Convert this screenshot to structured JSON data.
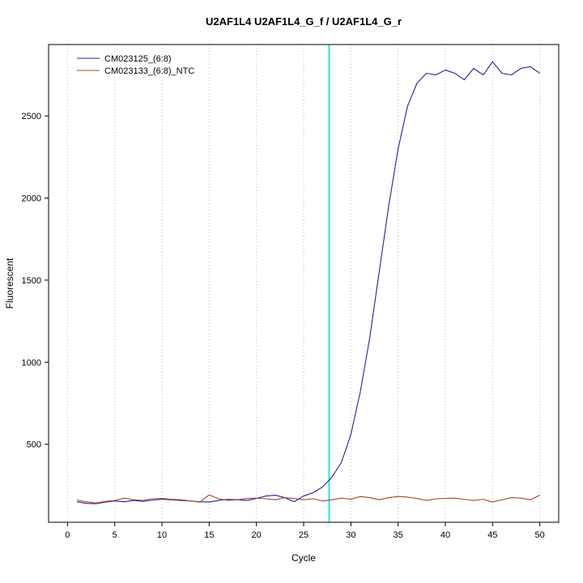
{
  "chart_data": {
    "type": "line",
    "title": "U2AF1L4  U2AF1L4_G_f / U2AF1L4_G_r",
    "xlabel": "Cycle",
    "ylabel": "Fluorescent",
    "xlim": [
      -2,
      52
    ],
    "ylim": [
      25,
      2935
    ],
    "xticks": [
      0,
      5,
      10,
      15,
      20,
      25,
      30,
      35,
      40,
      45,
      50
    ],
    "yticks": [
      500,
      1000,
      1500,
      2000,
      2500
    ],
    "grid": "vertical-dotted",
    "grid_color": "#bfbfbf",
    "threshold_line": {
      "x": 27.7,
      "color": "#00e0e0"
    },
    "legend_position": "top-left",
    "x": [
      1,
      2,
      3,
      4,
      5,
      6,
      7,
      8,
      9,
      10,
      11,
      12,
      13,
      14,
      15,
      16,
      17,
      18,
      19,
      20,
      21,
      22,
      23,
      24,
      25,
      26,
      27,
      28,
      29,
      30,
      31,
      32,
      33,
      34,
      35,
      36,
      37,
      38,
      39,
      40,
      41,
      42,
      43,
      44,
      45,
      46,
      47,
      48,
      49,
      50
    ],
    "series": [
      {
        "name": "CM023125_(6:8)",
        "color": "#22229a",
        "values": [
          150,
          140,
          138,
          148,
          155,
          150,
          158,
          152,
          160,
          165,
          162,
          158,
          155,
          150,
          148,
          158,
          165,
          162,
          158,
          170,
          185,
          190,
          175,
          150,
          185,
          205,
          240,
          300,
          390,
          560,
          820,
          1150,
          1550,
          1950,
          2300,
          2560,
          2700,
          2760,
          2750,
          2780,
          2760,
          2720,
          2790,
          2750,
          2830,
          2760,
          2750,
          2790,
          2800,
          2760
        ]
      },
      {
        "name": "CM023133_(6:8)_NTC",
        "color": "#a8442f",
        "values": [
          160,
          150,
          142,
          152,
          158,
          172,
          162,
          158,
          168,
          170,
          165,
          162,
          155,
          148,
          192,
          168,
          158,
          162,
          170,
          172,
          168,
          162,
          175,
          170,
          162,
          168,
          155,
          162,
          172,
          165,
          182,
          175,
          162,
          175,
          182,
          178,
          170,
          158,
          168,
          170,
          172,
          165,
          158,
          165,
          148,
          162,
          175,
          172,
          162,
          190
        ]
      }
    ]
  }
}
